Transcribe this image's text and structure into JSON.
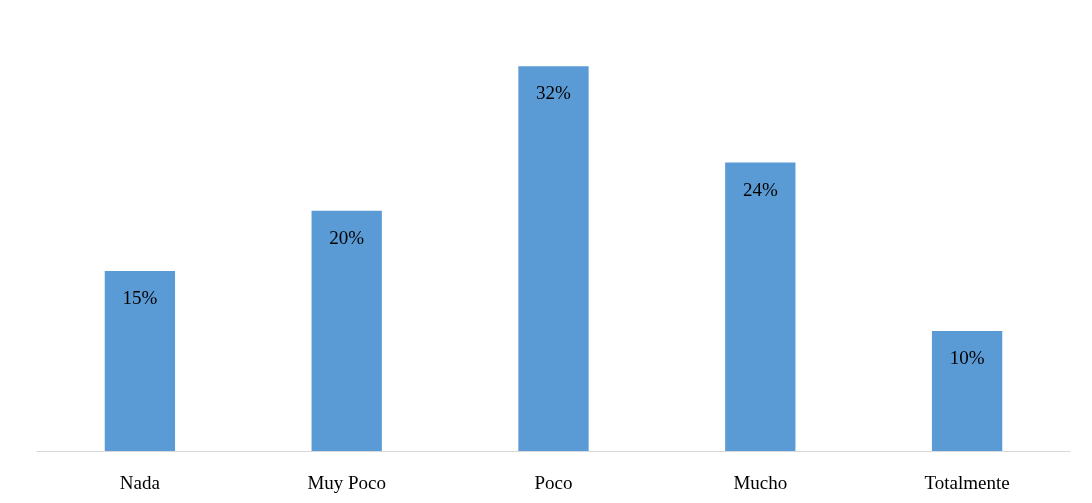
{
  "chart_data": {
    "type": "bar",
    "categories": [
      "Nada",
      "Muy Poco",
      "Poco",
      "Mucho",
      "Totalmente"
    ],
    "values": [
      15,
      20,
      32,
      24,
      10
    ],
    "value_labels": [
      "15%",
      "20%",
      "32%",
      "24%",
      "10%"
    ],
    "color": "#5b9bd5"
  }
}
